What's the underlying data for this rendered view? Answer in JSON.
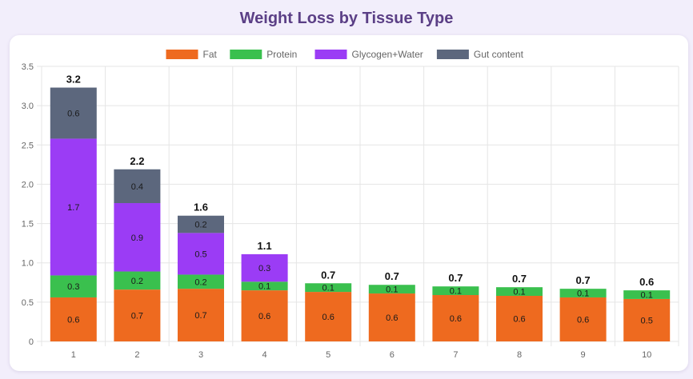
{
  "page": {
    "title": "Weight Loss by Tissue Type"
  },
  "chart_data": {
    "type": "bar",
    "stacked": true,
    "categories": [
      "1",
      "2",
      "3",
      "4",
      "5",
      "6",
      "7",
      "8",
      "9",
      "10"
    ],
    "series": [
      {
        "name": "Fat",
        "color": "#ee6a1f",
        "values": [
          0.56,
          0.66,
          0.67,
          0.65,
          0.63,
          0.61,
          0.59,
          0.58,
          0.56,
          0.54
        ],
        "labels": [
          "0.6",
          "0.7",
          "0.7",
          "0.6",
          "0.6",
          "0.6",
          "0.6",
          "0.6",
          "0.6",
          "0.5"
        ]
      },
      {
        "name": "Protein",
        "color": "#3ac04e",
        "values": [
          0.28,
          0.23,
          0.18,
          0.11,
          0.11,
          0.11,
          0.11,
          0.11,
          0.11,
          0.11
        ],
        "labels": [
          "0.3",
          "0.2",
          "0.2",
          "0.1",
          "0.1",
          "0.1",
          "0.1",
          "0.1",
          "0.1",
          "0.1"
        ]
      },
      {
        "name": "Glycogen+Water",
        "color": "#9b3cf5",
        "values": [
          1.74,
          0.87,
          0.53,
          0.35,
          0,
          0,
          0,
          0,
          0,
          0
        ],
        "labels": [
          "1.7",
          "0.9",
          "0.5",
          "0.3",
          "",
          "",
          "",
          "",
          "",
          ""
        ]
      },
      {
        "name": "Gut content",
        "color": "#5c677d",
        "values": [
          0.65,
          0.43,
          0.22,
          0,
          0,
          0,
          0,
          0,
          0,
          0
        ],
        "labels": [
          "0.6",
          "0.4",
          "0.2",
          "",
          "",
          "",
          "",
          "",
          "",
          ""
        ]
      }
    ],
    "totals": [
      "3.2",
      "2.2",
      "1.6",
      "1.1",
      "0.7",
      "0.7",
      "0.7",
      "0.7",
      "0.7",
      "0.6"
    ],
    "y_ticks": [
      "0",
      "0.5",
      "1.0",
      "1.5",
      "2.0",
      "2.5",
      "3.0",
      "3.5"
    ],
    "ylim": [
      0,
      3.5
    ],
    "legend_position": "top",
    "grid": true
  }
}
